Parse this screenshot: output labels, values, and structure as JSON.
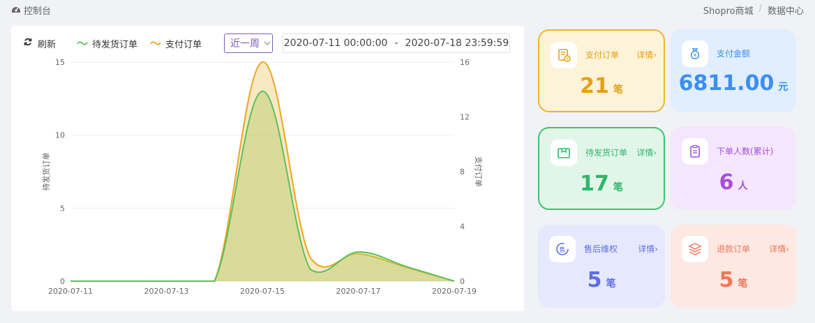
{
  "breadcrumb": {
    "left": "控制台",
    "right": [
      "Shopro商城",
      "数据中心"
    ],
    "separator": "/"
  },
  "toolbar": {
    "refresh_label": "刷新",
    "legend": [
      {
        "name": "待发货订单",
        "color": "#5cbf5c"
      },
      {
        "name": "支付订单",
        "color": "#e9a820"
      }
    ],
    "range_select": {
      "value": "近一周"
    },
    "date_range": {
      "start": "2020-07-11 00:00:00",
      "separator": "-",
      "end": "2020-07-18 23:59:59"
    }
  },
  "chart_data": {
    "type": "area",
    "x": [
      "2020-07-11",
      "2020-07-12",
      "2020-07-13",
      "2020-07-14",
      "2020-07-15",
      "2020-07-16",
      "2020-07-17",
      "2020-07-18",
      "2020-07-19"
    ],
    "x_tick_labels": [
      "2020-07-11",
      "2020-07-13",
      "2020-07-15",
      "2020-07-17",
      "2020-07-19"
    ],
    "series": [
      {
        "name": "待发货订单",
        "axis": "left",
        "color": "#5cbf5c",
        "values": [
          0,
          0,
          0,
          0,
          13,
          0.8,
          2,
          1,
          0
        ]
      },
      {
        "name": "支付订单",
        "axis": "right",
        "color": "#e9a820",
        "values": [
          0,
          0,
          0,
          0,
          16,
          1.7,
          2,
          1,
          0
        ]
      }
    ],
    "y_left": {
      "label": "待发货订单",
      "min": 0,
      "max": 15,
      "ticks": [
        0,
        5,
        10,
        15
      ]
    },
    "y_right": {
      "label": "支付订单",
      "min": 0,
      "max": 16,
      "ticks": [
        0,
        4,
        8,
        12,
        16
      ]
    }
  },
  "cards": {
    "pay_orders": {
      "label": "支付订单",
      "more": "详情›",
      "value": "21",
      "unit": "笔",
      "color": "#e6a016",
      "bg": "#fdf3d8",
      "border": "#f0b52c"
    },
    "pay_amount": {
      "label": "支付金额",
      "value": "6811.00",
      "unit": "元",
      "color": "#3d8ef0",
      "bg": "#e0eefe"
    },
    "pending_ship": {
      "label": "待发货订单",
      "more": "详情›",
      "value": "17",
      "unit": "笔",
      "color": "#2fb56a",
      "bg": "#e1f6e9",
      "border": "#3cc46e"
    },
    "buyers": {
      "label": "下单人数(累计)",
      "value": "6",
      "unit": "人",
      "color": "#a64fd8",
      "bg": "#f3e6fd"
    },
    "after_sale": {
      "label": "售后维权",
      "more": "详情›",
      "value": "5",
      "unit": "笔",
      "color": "#5b6fe6",
      "bg": "#e6e9fd"
    },
    "refund": {
      "label": "退款订单",
      "more": "详情›",
      "value": "5",
      "unit": "笔",
      "color": "#f2775a",
      "bg": "#fde8e2"
    }
  }
}
